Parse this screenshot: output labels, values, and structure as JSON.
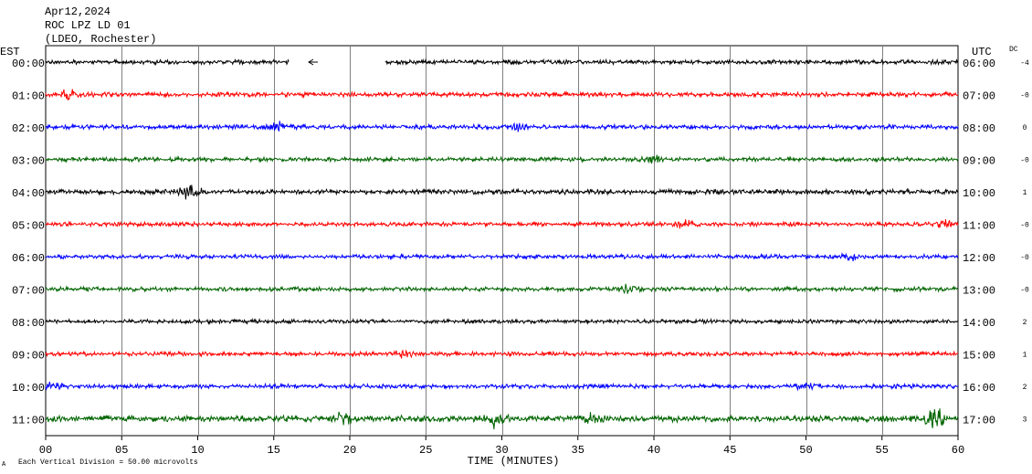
{
  "header": {
    "date": "Apr12,2024",
    "station": "ROC LPZ LD 01",
    "network": "(LDEO, Rochester)"
  },
  "labels": {
    "left_timezone": "EST",
    "right_timezone": "UTC",
    "dc_label": "DC",
    "xlabel": "TIME (MINUTES)",
    "footer": "Each Vertical Division =   50.00 microvolts",
    "footer_mark": "A"
  },
  "colors": {
    "trace_cycle": [
      "#000000",
      "#ff0000",
      "#0000ff",
      "#006400"
    ],
    "grid": "#808080",
    "axis": "#000000"
  },
  "chart_data": {
    "type": "line",
    "title": "ROC LPZ LD 01",
    "xlabel": "TIME (MINUTES)",
    "xlim": [
      0,
      60
    ],
    "x_ticks": [
      "00",
      "05",
      "10",
      "15",
      "20",
      "25",
      "30",
      "35",
      "40",
      "45",
      "50",
      "55",
      "60"
    ],
    "grid": true,
    "rows": [
      {
        "est": "00:00",
        "utc": "06:00",
        "dc": "-4",
        "gaps": [
          [
            16.0,
            22.3
          ]
        ],
        "bursts": [],
        "noise": 0.28
      },
      {
        "est": "01:00",
        "utc": "07:00",
        "dc": "-0",
        "gaps": [],
        "bursts": [
          [
            1.5,
            0.5
          ]
        ],
        "noise": 0.3
      },
      {
        "est": "02:00",
        "utc": "08:00",
        "dc": "0",
        "gaps": [],
        "bursts": [
          [
            15.5,
            0.5
          ],
          [
            31.0,
            0.4
          ]
        ],
        "noise": 0.3
      },
      {
        "est": "03:00",
        "utc": "09:00",
        "dc": "-0",
        "gaps": [],
        "bursts": [
          [
            40.0,
            0.4
          ]
        ],
        "noise": 0.28
      },
      {
        "est": "04:00",
        "utc": "10:00",
        "dc": "1",
        "gaps": [],
        "bursts": [
          [
            9.5,
            0.9
          ]
        ],
        "noise": 0.32
      },
      {
        "est": "05:00",
        "utc": "11:00",
        "dc": "-0",
        "gaps": [],
        "bursts": [
          [
            42.0,
            0.4
          ],
          [
            59.0,
            0.4
          ]
        ],
        "noise": 0.28
      },
      {
        "est": "06:00",
        "utc": "12:00",
        "dc": "-0",
        "gaps": [],
        "bursts": [
          [
            53.0,
            0.3
          ]
        ],
        "noise": 0.28
      },
      {
        "est": "07:00",
        "utc": "13:00",
        "dc": "-0",
        "gaps": [],
        "bursts": [
          [
            38.2,
            0.6
          ]
        ],
        "noise": 0.28
      },
      {
        "est": "08:00",
        "utc": "14:00",
        "dc": "2",
        "gaps": [],
        "bursts": [],
        "noise": 0.26
      },
      {
        "est": "09:00",
        "utc": "15:00",
        "dc": "1",
        "gaps": [],
        "bursts": [
          [
            23.5,
            0.4
          ]
        ],
        "noise": 0.28
      },
      {
        "est": "10:00",
        "utc": "16:00",
        "dc": "2",
        "gaps": [],
        "bursts": [
          [
            0.5,
            0.4
          ],
          [
            50.0,
            0.3
          ]
        ],
        "noise": 0.28
      },
      {
        "est": "11:00",
        "utc": "17:00",
        "dc": "3",
        "gaps": [],
        "bursts": [
          [
            19.5,
            0.8
          ],
          [
            29.5,
            1.0
          ],
          [
            36.0,
            0.6
          ],
          [
            58.5,
            1.2
          ]
        ],
        "noise": 0.42
      }
    ]
  }
}
